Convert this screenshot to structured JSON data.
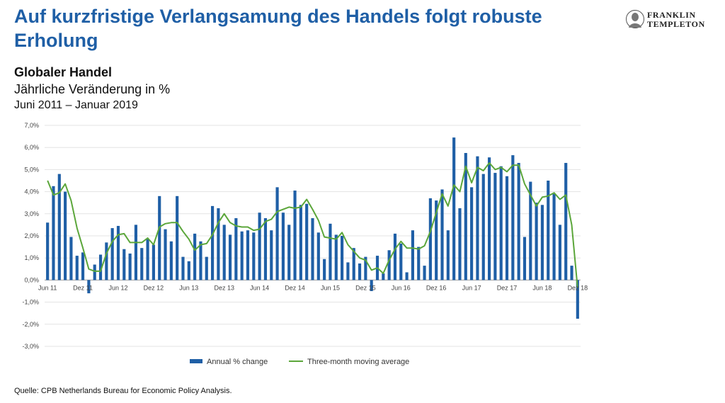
{
  "header": {
    "headline": "Auf kurzfristige Verlangsamung des Handels folgt robuste Erholung",
    "logo_line1": "FRANKLIN",
    "logo_line2": "TEMPLETON",
    "logo_icon": "franklin-portrait-icon"
  },
  "subtitle": {
    "line1": "Globaler Handel",
    "line2": "Jährliche Veränderung in %",
    "line3": "Juni 2011 – Januar 2019"
  },
  "source": "Quelle: CPB Netherlands Bureau for Economic Policy Analysis.",
  "chart_data": {
    "type": "bar",
    "ylim": [
      -3,
      7
    ],
    "yticks": [
      "-3,0%",
      "-2,0%",
      "-1,0%",
      "0,0%",
      "1,0%",
      "2,0%",
      "3,0%",
      "4,0%",
      "5,0%",
      "6,0%",
      "7,0%"
    ],
    "xtick_labels": [
      "Jun 11",
      "Dez 11",
      "Jun 12",
      "Dez 12",
      "Jun 13",
      "Dez 13",
      "Jun 14",
      "Dez 14",
      "Jun 15",
      "Dez 15",
      "Jun 16",
      "Dez 16",
      "Jun 17",
      "Dez 17",
      "Jun 18",
      "Dez 18"
    ],
    "grid": true,
    "legend_position": "bottom",
    "colors": {
      "bars": "#1f5fa6",
      "line": "#5ba63a"
    },
    "series": [
      {
        "name": "Annual % change",
        "type": "bar",
        "values": [
          2.6,
          4.25,
          4.8,
          4.0,
          1.95,
          1.1,
          1.25,
          -0.6,
          0.7,
          1.15,
          1.7,
          2.35,
          2.45,
          1.4,
          1.2,
          2.5,
          1.45,
          1.85,
          1.6,
          3.8,
          2.3,
          1.75,
          3.8,
          1.05,
          0.85,
          2.1,
          1.75,
          1.05,
          3.35,
          3.25,
          2.5,
          2.05,
          2.8,
          2.2,
          2.25,
          2.15,
          3.05,
          2.8,
          2.25,
          4.2,
          3.05,
          2.5,
          4.05,
          3.4,
          3.45,
          2.8,
          2.15,
          0.95,
          2.55,
          2.05,
          2.0,
          0.8,
          1.45,
          0.75,
          1.05,
          -0.5,
          1.1,
          0.3,
          1.35,
          2.1,
          1.65,
          0.35,
          2.25,
          1.5,
          0.65,
          3.7,
          3.6,
          4.1,
          2.25,
          6.45,
          3.25,
          5.75,
          4.2,
          5.6,
          4.8,
          5.55,
          4.85,
          5.15,
          4.7,
          5.65,
          5.3,
          1.95,
          4.45,
          3.5,
          3.4,
          4.5,
          3.9,
          2.5,
          5.3,
          0.65,
          -1.75
        ]
      },
      {
        "name": "Three-month moving average",
        "type": "line",
        "values": [
          4.5,
          3.85,
          3.95,
          4.35,
          3.6,
          2.35,
          1.45,
          0.5,
          0.4,
          0.4,
          1.2,
          1.75,
          2.05,
          2.1,
          1.7,
          1.7,
          1.7,
          1.9,
          1.6,
          2.4,
          2.55,
          2.6,
          2.6,
          2.2,
          1.85,
          1.35,
          1.6,
          1.65,
          2.05,
          2.6,
          3.0,
          2.6,
          2.45,
          2.4,
          2.4,
          2.25,
          2.3,
          2.65,
          2.75,
          3.1,
          3.2,
          3.3,
          3.25,
          3.3,
          3.65,
          3.2,
          2.7,
          1.95,
          1.9,
          1.85,
          2.15,
          1.6,
          1.3,
          1.0,
          0.9,
          0.45,
          0.55,
          0.3,
          0.9,
          1.4,
          1.75,
          1.45,
          1.45,
          1.4,
          1.55,
          2.2,
          3.05,
          3.9,
          3.35,
          4.3,
          4.0,
          5.15,
          4.4,
          5.1,
          4.95,
          5.3,
          5.0,
          5.1,
          4.9,
          5.2,
          5.2,
          4.35,
          3.85,
          3.35,
          3.75,
          3.8,
          3.95,
          3.65,
          3.85,
          2.5,
          -0.35
        ]
      }
    ]
  }
}
